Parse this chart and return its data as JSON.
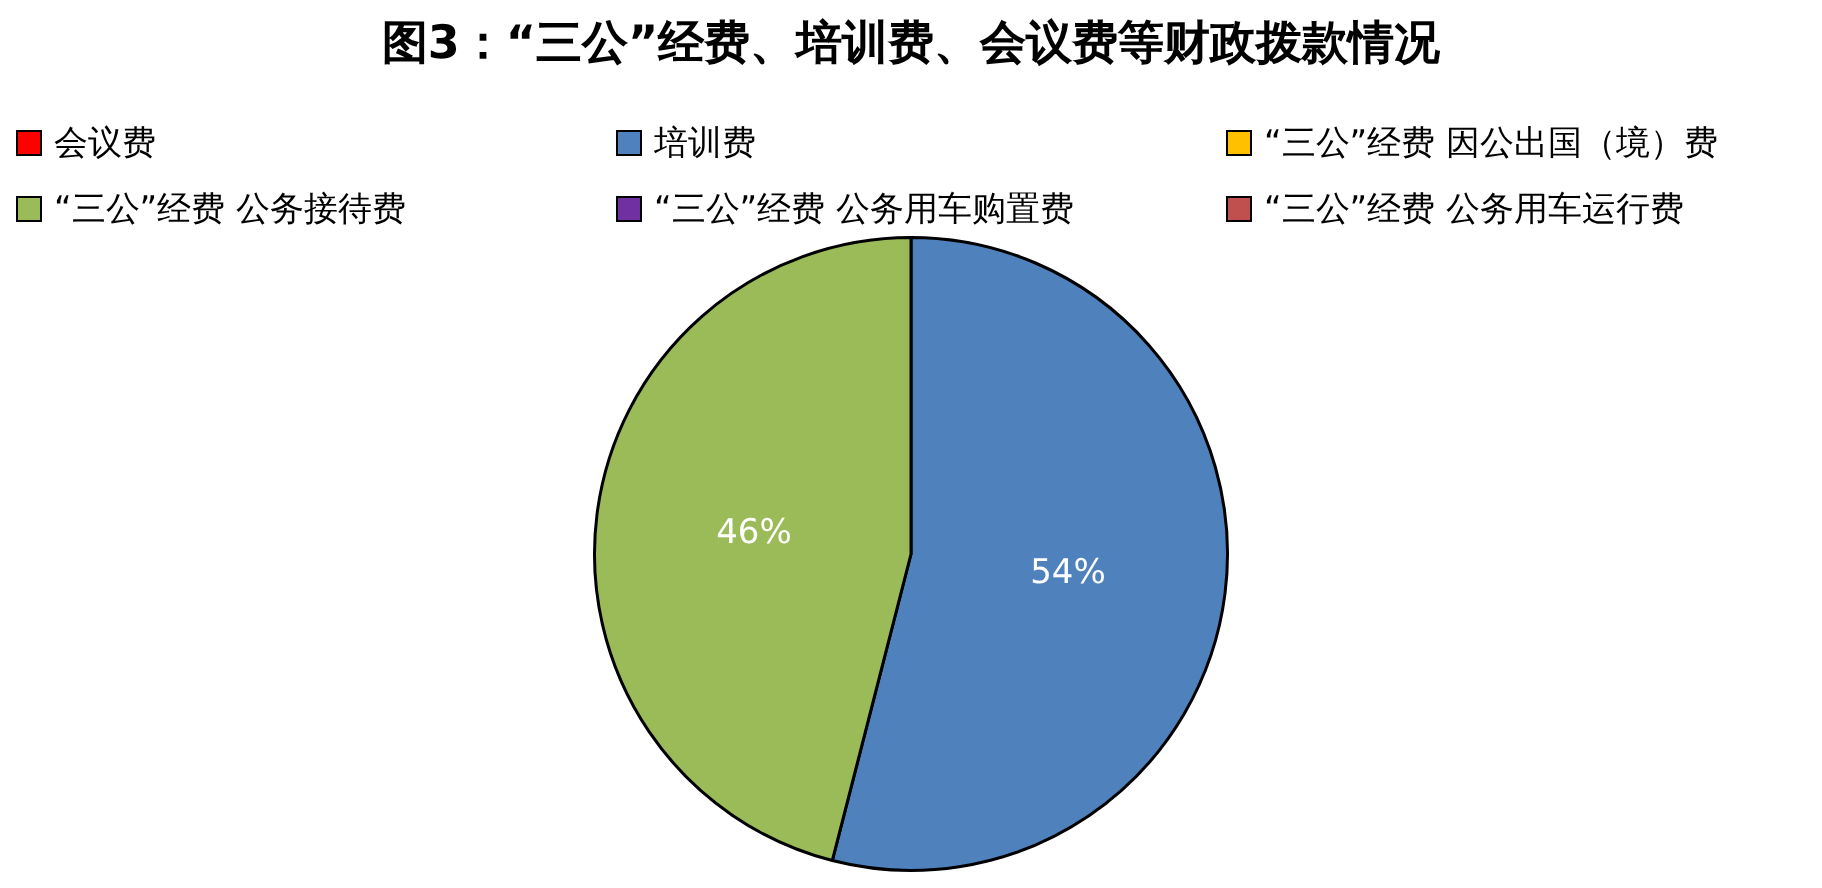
{
  "chart_data": {
    "type": "pie",
    "title": "图3：“三公”经费、培训费、会议费等财政拨款情况",
    "categories": [
      "会议费",
      "培训费",
      "“三公”经费 因公出国（境）费",
      "“三公”经费 公务接待费",
      "“三公”经费 公务用车购置费",
      "“三公”经费 公务用车运行费"
    ],
    "values": [
      0,
      54,
      0,
      46,
      0,
      0
    ],
    "colors": [
      "#ff0000",
      "#4f81bd",
      "#ffc000",
      "#9bbb59",
      "#7030a0",
      "#c0504d"
    ],
    "value_labels": [
      null,
      "54%",
      null,
      "46%",
      null,
      null
    ],
    "legend": "top"
  }
}
